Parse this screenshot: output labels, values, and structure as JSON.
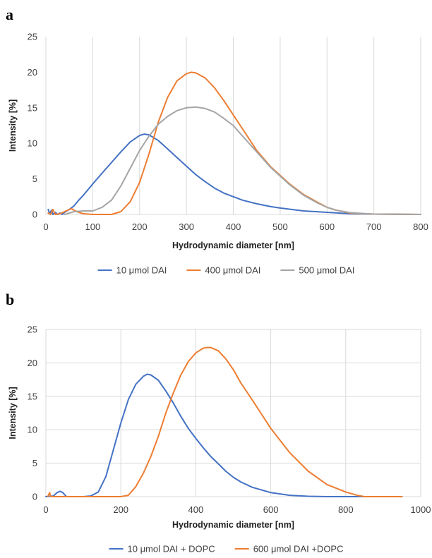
{
  "chart_data": [
    {
      "type": "line",
      "panel_label": "a",
      "title": "",
      "xlabel": "Hydrodynamic diameter [nm]",
      "ylabel": "Intensity [%]",
      "xlim": [
        0,
        800
      ],
      "ylim": [
        0,
        25
      ],
      "xticks": [
        0,
        100,
        200,
        300,
        400,
        500,
        600,
        700,
        800
      ],
      "yticks": [
        0,
        5,
        10,
        15,
        20,
        25
      ],
      "grid": "vertical",
      "legend_position": "bottom",
      "series": [
        {
          "name": "10 μmol DAI",
          "color": "#4472C4",
          "points": [
            [
              5,
              0.7
            ],
            [
              8,
              0.1
            ],
            [
              12,
              0.6
            ],
            [
              15,
              0.0
            ],
            [
              20,
              0.3
            ],
            [
              25,
              0.0
            ],
            [
              30,
              0.2
            ],
            [
              35,
              0.0
            ],
            [
              40,
              0.3
            ],
            [
              50,
              0.7
            ],
            [
              60,
              1.2
            ],
            [
              70,
              2.0
            ],
            [
              80,
              2.7
            ],
            [
              100,
              4.3
            ],
            [
              120,
              5.8
            ],
            [
              140,
              7.3
            ],
            [
              160,
              8.8
            ],
            [
              180,
              10.2
            ],
            [
              200,
              11.1
            ],
            [
              210,
              11.3
            ],
            [
              220,
              11.2
            ],
            [
              240,
              10.4
            ],
            [
              260,
              9.2
            ],
            [
              280,
              8.0
            ],
            [
              300,
              6.8
            ],
            [
              320,
              5.6
            ],
            [
              340,
              4.6
            ],
            [
              360,
              3.7
            ],
            [
              380,
              3.0
            ],
            [
              400,
              2.5
            ],
            [
              420,
              2.0
            ],
            [
              450,
              1.5
            ],
            [
              480,
              1.1
            ],
            [
              500,
              0.9
            ],
            [
              550,
              0.5
            ],
            [
              600,
              0.3
            ],
            [
              650,
              0.1
            ],
            [
              700,
              0.05
            ],
            [
              800,
              0.0
            ]
          ]
        },
        {
          "name": "400 μmol DAI",
          "color": "#ED7D31",
          "points": [
            [
              5,
              0.2
            ],
            [
              10,
              0.0
            ],
            [
              15,
              0.7
            ],
            [
              20,
              0.0
            ],
            [
              30,
              0.1
            ],
            [
              40,
              0.4
            ],
            [
              50,
              0.7
            ],
            [
              55,
              0.8
            ],
            [
              60,
              0.6
            ],
            [
              70,
              0.3
            ],
            [
              80,
              0.1
            ],
            [
              100,
              0.0
            ],
            [
              140,
              0.0
            ],
            [
              160,
              0.4
            ],
            [
              180,
              1.8
            ],
            [
              200,
              4.5
            ],
            [
              220,
              8.5
            ],
            [
              240,
              13.0
            ],
            [
              260,
              16.5
            ],
            [
              280,
              18.8
            ],
            [
              300,
              19.8
            ],
            [
              310,
              20.0
            ],
            [
              320,
              19.9
            ],
            [
              340,
              19.2
            ],
            [
              360,
              17.8
            ],
            [
              380,
              16.0
            ],
            [
              400,
              14.0
            ],
            [
              420,
              12.0
            ],
            [
              450,
              9.0
            ],
            [
              480,
              6.7
            ],
            [
              500,
              5.5
            ],
            [
              520,
              4.3
            ],
            [
              550,
              2.8
            ],
            [
              580,
              1.7
            ],
            [
              600,
              1.0
            ],
            [
              620,
              0.6
            ],
            [
              650,
              0.2
            ],
            [
              700,
              0.05
            ],
            [
              800,
              0.0
            ]
          ]
        },
        {
          "name": "500 μmol DAI",
          "color": "#A5A5A5",
          "points": [
            [
              40,
              0.0
            ],
            [
              60,
              0.4
            ],
            [
              80,
              0.5
            ],
            [
              100,
              0.5
            ],
            [
              120,
              1.0
            ],
            [
              140,
              2.0
            ],
            [
              160,
              4.0
            ],
            [
              180,
              6.5
            ],
            [
              200,
              9.0
            ],
            [
              220,
              11.0
            ],
            [
              240,
              12.7
            ],
            [
              260,
              13.8
            ],
            [
              280,
              14.6
            ],
            [
              300,
              15.0
            ],
            [
              320,
              15.1
            ],
            [
              340,
              14.9
            ],
            [
              360,
              14.4
            ],
            [
              380,
              13.5
            ],
            [
              400,
              12.5
            ],
            [
              420,
              11.0
            ],
            [
              450,
              8.8
            ],
            [
              480,
              6.6
            ],
            [
              500,
              5.4
            ],
            [
              520,
              4.2
            ],
            [
              550,
              2.7
            ],
            [
              580,
              1.6
            ],
            [
              600,
              1.0
            ],
            [
              620,
              0.6
            ],
            [
              650,
              0.25
            ],
            [
              700,
              0.05
            ],
            [
              800,
              0.0
            ]
          ]
        }
      ]
    },
    {
      "type": "line",
      "panel_label": "b",
      "title": "",
      "xlabel": "Hydrodynamic diameter [nm]",
      "ylabel": "Intensity [%]",
      "xlim": [
        0,
        1000
      ],
      "ylim": [
        0,
        25
      ],
      "xticks": [
        0,
        200,
        400,
        600,
        800,
        1000
      ],
      "yticks": [
        0,
        5,
        10,
        15,
        20,
        25
      ],
      "grid": "both",
      "legend_position": "bottom",
      "series": [
        {
          "name": "10 μmol DAI + DOPC",
          "color": "#4472C4",
          "points": [
            [
              0,
              0.0
            ],
            [
              20,
              0.1
            ],
            [
              30,
              0.6
            ],
            [
              38,
              0.8
            ],
            [
              45,
              0.6
            ],
            [
              55,
              0.0
            ],
            [
              100,
              0.0
            ],
            [
              120,
              0.1
            ],
            [
              140,
              0.7
            ],
            [
              160,
              3.0
            ],
            [
              180,
              7.0
            ],
            [
              200,
              11.0
            ],
            [
              220,
              14.5
            ],
            [
              240,
              16.8
            ],
            [
              260,
              18.0
            ],
            [
              270,
              18.3
            ],
            [
              280,
              18.2
            ],
            [
              300,
              17.4
            ],
            [
              320,
              15.8
            ],
            [
              340,
              14.0
            ],
            [
              360,
              12.0
            ],
            [
              380,
              10.2
            ],
            [
              400,
              8.7
            ],
            [
              420,
              7.3
            ],
            [
              440,
              6.0
            ],
            [
              460,
              4.9
            ],
            [
              480,
              3.8
            ],
            [
              500,
              2.9
            ],
            [
              520,
              2.2
            ],
            [
              550,
              1.4
            ],
            [
              600,
              0.6
            ],
            [
              650,
              0.2
            ],
            [
              700,
              0.05
            ],
            [
              750,
              0.0
            ],
            [
              950,
              0.0
            ]
          ]
        },
        {
          "name": "600 μmol DAI +DOPC",
          "color": "#ED7D31",
          "points": [
            [
              5,
              0.0
            ],
            [
              10,
              0.6
            ],
            [
              13,
              0.0
            ],
            [
              200,
              0.0
            ],
            [
              220,
              0.2
            ],
            [
              240,
              1.5
            ],
            [
              260,
              3.5
            ],
            [
              280,
              6.0
            ],
            [
              300,
              9.0
            ],
            [
              320,
              12.5
            ],
            [
              340,
              15.5
            ],
            [
              360,
              18.2
            ],
            [
              380,
              20.2
            ],
            [
              400,
              21.5
            ],
            [
              420,
              22.2
            ],
            [
              430,
              22.3
            ],
            [
              440,
              22.3
            ],
            [
              460,
              21.8
            ],
            [
              480,
              20.6
            ],
            [
              500,
              19.0
            ],
            [
              520,
              17.0
            ],
            [
              550,
              14.5
            ],
            [
              600,
              10.2
            ],
            [
              650,
              6.6
            ],
            [
              700,
              3.8
            ],
            [
              750,
              1.8
            ],
            [
              800,
              0.7
            ],
            [
              830,
              0.2
            ],
            [
              850,
              0.0
            ],
            [
              950,
              0.0
            ]
          ]
        }
      ]
    }
  ]
}
